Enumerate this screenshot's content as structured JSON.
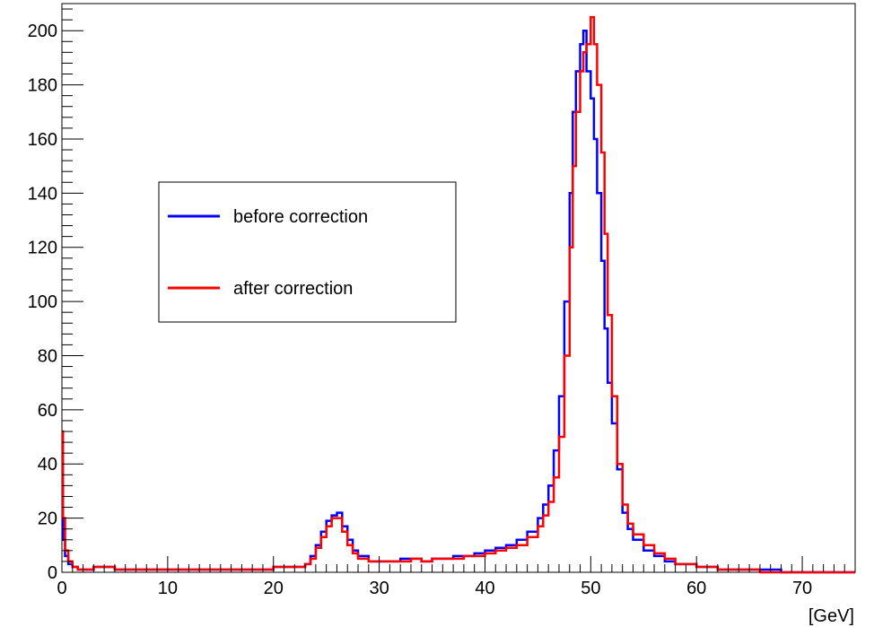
{
  "chart_data": {
    "type": "line",
    "title": "",
    "xlabel": "[GeV]",
    "ylabel": "",
    "xlim": [
      0,
      75
    ],
    "ylim": [
      0,
      210
    ],
    "x_ticks": [
      0,
      10,
      20,
      30,
      40,
      50,
      60,
      70
    ],
    "y_ticks": [
      0,
      20,
      40,
      60,
      80,
      100,
      120,
      140,
      160,
      180,
      200
    ],
    "grid": false,
    "legend": "center-left",
    "series": [
      {
        "name": "before correction",
        "color": "#0000ff",
        "x": [
          0,
          0.1,
          0.3,
          0.6,
          1.0,
          1.5,
          3,
          5,
          8,
          10,
          12,
          15,
          18,
          20,
          21,
          22,
          23,
          23.5,
          24,
          24.5,
          25,
          25.5,
          26,
          26.5,
          27,
          27.5,
          28,
          29,
          30,
          31,
          32,
          33,
          34,
          35,
          36,
          37,
          38,
          39,
          40,
          41,
          42,
          43,
          44,
          45,
          45.5,
          46,
          46.5,
          47,
          47.5,
          48,
          48.3,
          48.6,
          49,
          49.3,
          49.6,
          50,
          50.3,
          50.6,
          51,
          51.3,
          51.6,
          52,
          52.5,
          53,
          53.5,
          54,
          55,
          56,
          57,
          58,
          60,
          62,
          64,
          66,
          68,
          70,
          72,
          75
        ],
        "y": [
          32,
          12,
          6,
          3,
          2,
          1,
          2,
          1,
          1,
          1,
          1,
          1,
          1,
          2,
          2,
          2,
          3,
          6,
          10,
          15,
          19,
          21,
          22,
          17,
          12,
          8,
          6,
          4,
          4,
          4,
          5,
          5,
          4,
          5,
          5,
          6,
          6,
          7,
          8,
          9,
          10,
          12,
          15,
          20,
          25,
          32,
          45,
          65,
          100,
          140,
          170,
          185,
          195,
          200,
          185,
          175,
          160,
          140,
          115,
          90,
          70,
          55,
          38,
          22,
          16,
          12,
          8,
          6,
          4,
          3,
          2,
          1,
          1,
          1,
          0,
          0,
          0,
          0
        ]
      },
      {
        "name": "after correction",
        "color": "#ff0000",
        "x": [
          0,
          0.1,
          0.3,
          0.6,
          1.0,
          1.5,
          3,
          5,
          8,
          10,
          12,
          15,
          18,
          20,
          21,
          22,
          23,
          23.5,
          24,
          24.5,
          25,
          25.5,
          26,
          26.5,
          27,
          27.5,
          28,
          29,
          30,
          31,
          32,
          33,
          34,
          35,
          36,
          37,
          38,
          39,
          40,
          41,
          42,
          43,
          44,
          45,
          45.5,
          46,
          46.5,
          47,
          47.5,
          48,
          48.3,
          48.6,
          49,
          49.3,
          49.6,
          50,
          50.3,
          50.6,
          51,
          51.3,
          51.6,
          52,
          52.5,
          53,
          53.5,
          54,
          55,
          56,
          57,
          58,
          60,
          62,
          64,
          66,
          68,
          70,
          72,
          75
        ],
        "y": [
          52,
          20,
          8,
          4,
          2,
          1,
          2,
          1,
          1,
          1,
          1,
          1,
          1,
          2,
          2,
          2,
          3,
          5,
          9,
          13,
          17,
          20,
          20,
          15,
          10,
          7,
          5,
          4,
          4,
          4,
          4,
          5,
          4,
          5,
          5,
          5,
          6,
          6,
          7,
          8,
          9,
          10,
          13,
          17,
          21,
          26,
          35,
          50,
          80,
          120,
          150,
          170,
          185,
          192,
          195,
          205,
          195,
          180,
          155,
          125,
          95,
          65,
          40,
          25,
          18,
          14,
          10,
          7,
          5,
          3,
          2,
          1,
          1,
          0,
          0,
          0,
          0,
          0
        ]
      }
    ]
  }
}
